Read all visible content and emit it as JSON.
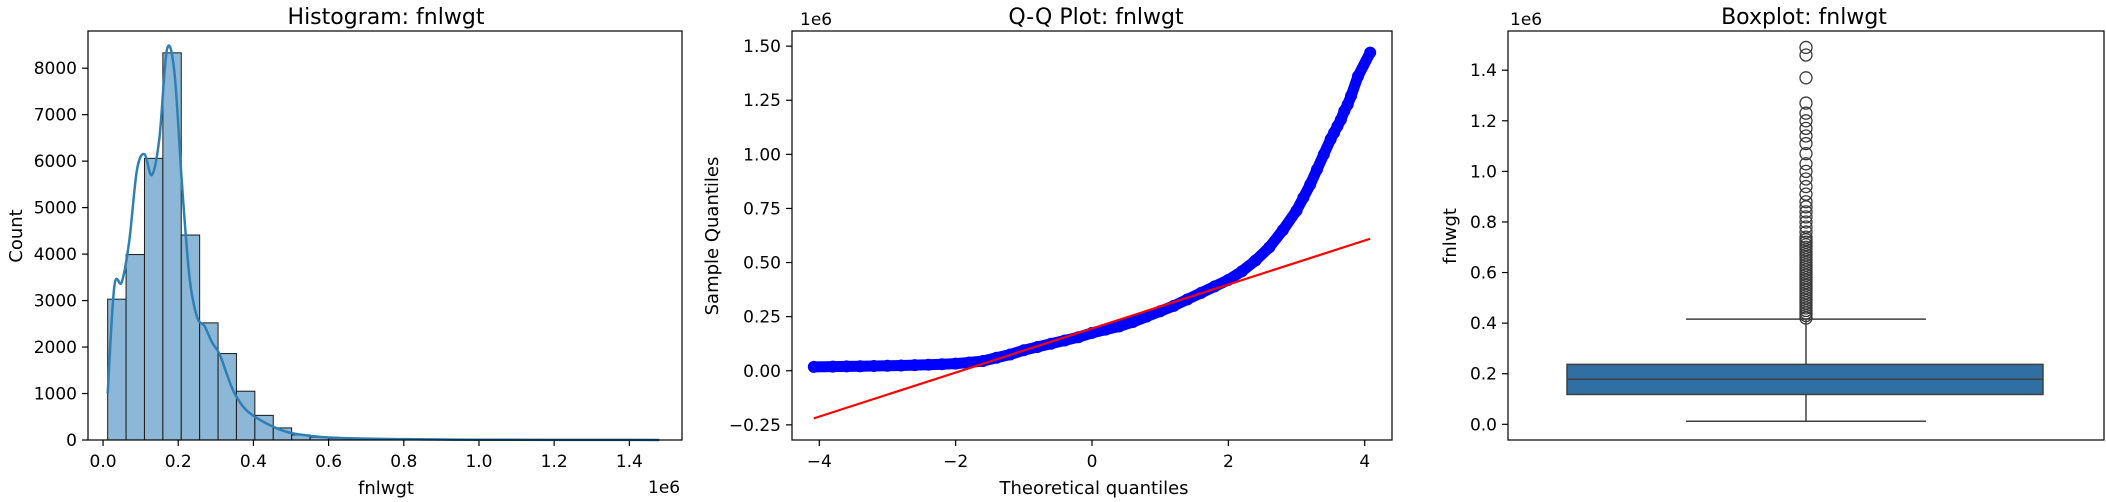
{
  "colors": {
    "hist_fill": "#8db7d6",
    "hist_edge": "#1a1a1a",
    "kde_line": "#2f7fb5",
    "qq_points": "#0000ff",
    "qq_line": "#ff0000",
    "box_fill": "#2f6fa3",
    "box_edge": "#404040"
  },
  "chart_data": [
    {
      "type": "bar",
      "subtype": "histogram_with_kde",
      "title": "Histogram: fnlwgt",
      "xlabel": "fnlwgt",
      "ylabel": "Count",
      "x_offset_label": "1e6",
      "xlim": [
        -0.04,
        1.54
      ],
      "ylim": [
        0,
        8800
      ],
      "xticks": [
        0.0,
        0.2,
        0.4,
        0.6,
        0.8,
        1.0,
        1.2,
        1.4
      ],
      "xtick_labels": [
        "0.0",
        "0.2",
        "0.4",
        "0.6",
        "0.8",
        "1.0",
        "1.2",
        "1.4"
      ],
      "yticks": [
        0,
        1000,
        2000,
        3000,
        4000,
        5000,
        6000,
        7000,
        8000
      ],
      "ytick_labels": [
        "0",
        "1000",
        "2000",
        "3000",
        "4000",
        "5000",
        "6000",
        "7000",
        "8000"
      ],
      "bin_start": 0.0123,
      "bin_width": 0.04894,
      "counts": [
        3030,
        3990,
        6060,
        8330,
        4410,
        2520,
        1860,
        1050,
        530,
        260,
        110,
        60,
        30,
        20,
        10,
        8,
        5,
        4,
        3,
        2,
        2,
        1,
        1,
        1,
        1,
        1,
        1,
        0,
        1,
        1
      ],
      "kde": {
        "x": [
          0.0123,
          0.03,
          0.05,
          0.07,
          0.09,
          0.11,
          0.13,
          0.15,
          0.17,
          0.19,
          0.21,
          0.23,
          0.25,
          0.27,
          0.29,
          0.31,
          0.33,
          0.35,
          0.38,
          0.42,
          0.46,
          0.5,
          0.55,
          0.6,
          0.7,
          0.8,
          0.9,
          1.0,
          1.2,
          1.48
        ],
        "y": [
          1000,
          3300,
          3400,
          4300,
          5800,
          6150,
          5700,
          6500,
          8400,
          7900,
          5500,
          3500,
          2650,
          2450,
          2100,
          1850,
          1400,
          1000,
          650,
          420,
          260,
          150,
          90,
          55,
          30,
          18,
          10,
          6,
          3,
          1
        ]
      }
    },
    {
      "type": "scatter",
      "subtype": "qq_plot",
      "title": "Q-Q Plot: fnlwgt",
      "xlabel": "Theoretical quantiles",
      "ylabel": "Sample Quantiles",
      "y_offset_label": "1e6",
      "xlim": [
        -4.4,
        4.4
      ],
      "ylim": [
        -0.32,
        1.57
      ],
      "xticks": [
        -4,
        -2,
        0,
        2,
        4
      ],
      "xtick_labels": [
        "−4",
        "−2",
        "0",
        "2",
        "4"
      ],
      "yticks": [
        -0.25,
        0.0,
        0.25,
        0.5,
        0.75,
        1.0,
        1.25,
        1.5
      ],
      "ytick_labels": [
        "−0.25",
        "0.00",
        "0.25",
        "0.50",
        "0.75",
        "1.00",
        "1.25",
        "1.50"
      ],
      "points": {
        "x": [
          -4.08,
          -3.8,
          -3.6,
          -3.4,
          -3.2,
          -3.0,
          -2.8,
          -2.6,
          -2.4,
          -2.2,
          -2.0,
          -1.8,
          -1.6,
          -1.4,
          -1.2,
          -1.0,
          -0.8,
          -0.6,
          -0.4,
          -0.2,
          0.0,
          0.2,
          0.4,
          0.6,
          0.8,
          1.0,
          1.2,
          1.4,
          1.6,
          1.8,
          2.0,
          2.2,
          2.4,
          2.6,
          2.8,
          3.0,
          3.1,
          3.2,
          3.3,
          3.4,
          3.5,
          3.55,
          3.6,
          3.65,
          3.7,
          3.75,
          3.8,
          3.9,
          4.08
        ],
        "y": [
          0.018,
          0.019,
          0.02,
          0.021,
          0.022,
          0.023,
          0.024,
          0.026,
          0.028,
          0.03,
          0.033,
          0.038,
          0.045,
          0.06,
          0.075,
          0.095,
          0.11,
          0.125,
          0.14,
          0.155,
          0.175,
          0.19,
          0.205,
          0.225,
          0.25,
          0.275,
          0.3,
          0.33,
          0.36,
          0.39,
          0.42,
          0.46,
          0.51,
          0.57,
          0.65,
          0.74,
          0.8,
          0.86,
          0.93,
          1.0,
          1.07,
          1.1,
          1.13,
          1.16,
          1.2,
          1.23,
          1.27,
          1.36,
          1.47
        ]
      },
      "fit_line": {
        "x": [
          -4.08,
          4.08
        ],
        "y": [
          -0.22,
          0.61
        ]
      }
    },
    {
      "type": "box",
      "title": "Boxplot: fnlwgt",
      "ylabel": "fnlwgt",
      "y_offset_label": "1e6",
      "ylim": [
        -0.062,
        1.555
      ],
      "yticks": [
        0.0,
        0.2,
        0.4,
        0.6,
        0.8,
        1.0,
        1.2,
        1.4
      ],
      "ytick_labels": [
        "0.0",
        "0.2",
        "0.4",
        "0.6",
        "0.8",
        "1.0",
        "1.2",
        "1.4"
      ],
      "whisker_low": 0.0123,
      "q1": 0.118,
      "median": 0.178,
      "q3": 0.237,
      "whisker_high": 0.416,
      "outliers": [
        0.42,
        0.43,
        0.44,
        0.45,
        0.46,
        0.47,
        0.48,
        0.49,
        0.5,
        0.51,
        0.52,
        0.53,
        0.54,
        0.55,
        0.56,
        0.57,
        0.58,
        0.59,
        0.6,
        0.61,
        0.62,
        0.63,
        0.64,
        0.65,
        0.66,
        0.67,
        0.68,
        0.69,
        0.7,
        0.71,
        0.72,
        0.73,
        0.74,
        0.76,
        0.78,
        0.8,
        0.82,
        0.84,
        0.86,
        0.88,
        0.91,
        0.94,
        0.97,
        1.0,
        1.03,
        1.07,
        1.11,
        1.14,
        1.17,
        1.2,
        1.23,
        1.27,
        1.37,
        1.46,
        1.49
      ]
    }
  ]
}
